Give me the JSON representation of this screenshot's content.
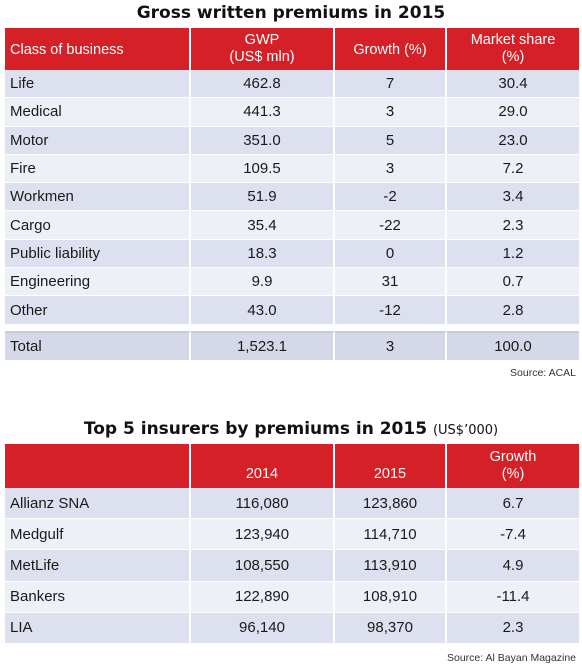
{
  "table1": {
    "title": "Gross written premiums in 2015",
    "headers": {
      "class": "Class of business",
      "gwp_line1": "GWP",
      "gwp_line2": "(US$ mln)",
      "growth": "Growth (%)",
      "share_line1": "Market share",
      "share_line2": "(%)"
    },
    "rows": [
      {
        "name": "Life",
        "gwp": "462.8",
        "growth": "7",
        "share": "30.4"
      },
      {
        "name": "Medical",
        "gwp": "441.3",
        "growth": "3",
        "share": "29.0"
      },
      {
        "name": "Motor",
        "gwp": "351.0",
        "growth": "5",
        "share": "23.0"
      },
      {
        "name": "Fire",
        "gwp": "109.5",
        "growth": "3",
        "share": "7.2"
      },
      {
        "name": "Workmen",
        "gwp": "51.9",
        "growth": "-2",
        "share": "3.4"
      },
      {
        "name": "Cargo",
        "gwp": "35.4",
        "growth": "-22",
        "share": "2.3"
      },
      {
        "name": "Public liability",
        "gwp": "18.3",
        "growth": "0",
        "share": "1.2"
      },
      {
        "name": "Engineering",
        "gwp": "9.9",
        "growth": "31",
        "share": "0.7"
      },
      {
        "name": "Other",
        "gwp": "43.0",
        "growth": "-12",
        "share": "2.8"
      }
    ],
    "total": {
      "name": "Total",
      "gwp": "1,523.1",
      "growth": "3",
      "share": "100.0"
    },
    "source": "Source: ACAL"
  },
  "table2": {
    "title": "Top 5 insurers by premiums in 2015",
    "unit": "(US$’000)",
    "headers": {
      "y2014": "2014",
      "y2015": "2015",
      "growth_line1": "Growth",
      "growth_line2": "(%)"
    },
    "rows": [
      {
        "name": "Allianz SNA",
        "v2014": "116,080",
        "v2015": "123,860",
        "growth": "6.7"
      },
      {
        "name": "Medgulf",
        "v2014": "123,940",
        "v2015": "114,710",
        "growth": "-7.4"
      },
      {
        "name": "MetLife",
        "v2014": "108,550",
        "v2015": "113,910",
        "growth": "4.9"
      },
      {
        "name": "Bankers",
        "v2014": "122,890",
        "v2015": "108,910",
        "growth": "-11.4"
      },
      {
        "name": "LIA",
        "v2014": "96,140",
        "v2015": "98,370",
        "growth": "2.3"
      }
    ],
    "source": "Source: Al Bayan Magazine"
  },
  "colors": {
    "header_red": "#d52027",
    "row_blue": "#dde1ef",
    "row_light": "#eef0f7"
  }
}
